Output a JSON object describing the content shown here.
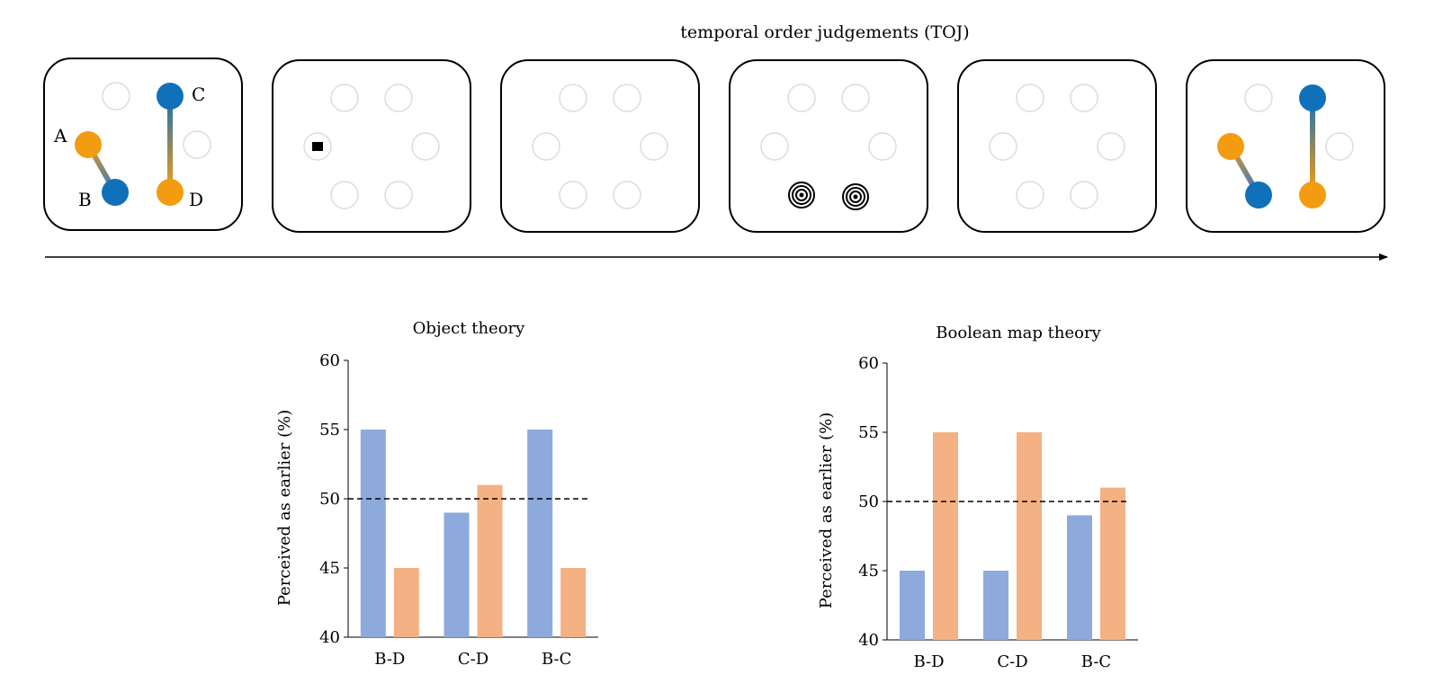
{
  "header": {
    "title": "temporal order judgements (TOJ)"
  },
  "sequence": {
    "point_labels": [
      "A",
      "B",
      "C",
      "D"
    ],
    "colors": {
      "orange": "#f39c12",
      "blue": "#1170ba",
      "placeholder": "#dcdcdc"
    }
  },
  "chart_data": [
    {
      "type": "bar",
      "title": "Object theory",
      "categories": [
        "B-D",
        "C-D",
        "B-C"
      ],
      "series": [
        {
          "values": [
            55,
            49,
            55
          ],
          "color": "#8eaadc"
        },
        {
          "values": [
            45,
            51,
            45
          ],
          "color": "#f4b183"
        }
      ],
      "ylabel": "Perceived as earlier (%)",
      "ylim": [
        40,
        60
      ],
      "yticks": [
        40,
        45,
        50,
        55,
        60
      ],
      "reference_line": 50,
      "grid": false
    },
    {
      "type": "bar",
      "title": "Boolean map theory",
      "categories": [
        "B-D",
        "C-D",
        "B-C"
      ],
      "series": [
        {
          "values": [
            45,
            45,
            49
          ],
          "color": "#8eaadc"
        },
        {
          "values": [
            55,
            55,
            51
          ],
          "color": "#f4b183"
        }
      ],
      "ylabel": "Perceived as earlier (%)",
      "ylim": [
        40,
        60
      ],
      "yticks": [
        40,
        45,
        50,
        55,
        60
      ],
      "reference_line": 50,
      "grid": false
    }
  ]
}
